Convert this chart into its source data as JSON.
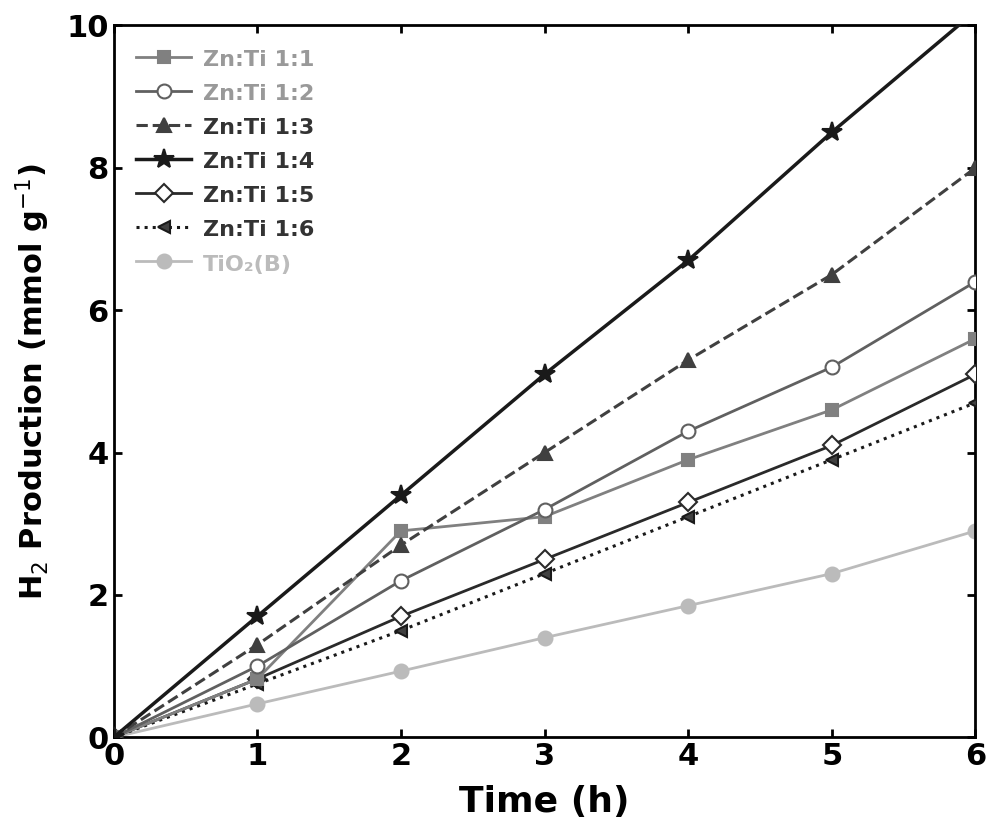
{
  "time": [
    0,
    1,
    2,
    3,
    4,
    5,
    6
  ],
  "series": [
    {
      "label": "Zn:Ti 1:1",
      "values": [
        0,
        0.82,
        2.9,
        3.1,
        3.9,
        4.6,
        5.6
      ],
      "color": "#808080",
      "linestyle": "solid",
      "marker": "s",
      "marker_facecolor": "#808080",
      "marker_size": 9,
      "linewidth": 2.0,
      "zorder": 4
    },
    {
      "label": "Zn:Ti 1:2",
      "values": [
        0,
        1.0,
        2.2,
        3.2,
        4.3,
        5.2,
        6.4
      ],
      "color": "#606060",
      "linestyle": "solid",
      "marker": "o",
      "marker_facecolor": "white",
      "marker_size": 10,
      "linewidth": 2.0,
      "zorder": 5
    },
    {
      "label": "Zn:Ti 1:3",
      "values": [
        0,
        1.3,
        2.7,
        4.0,
        5.3,
        6.5,
        8.0
      ],
      "color": "#404040",
      "linestyle": "dashed",
      "marker": "^",
      "marker_facecolor": "#404040",
      "marker_size": 10,
      "linewidth": 2.2,
      "zorder": 6
    },
    {
      "label": "Zn:Ti 1:4",
      "values": [
        0,
        1.7,
        3.4,
        5.1,
        6.7,
        8.5,
        10.2
      ],
      "color": "#1a1a1a",
      "linestyle": "solid",
      "marker": "*",
      "marker_facecolor": "#1a1a1a",
      "marker_size": 15,
      "linewidth": 2.5,
      "zorder": 7
    },
    {
      "label": "Zn:Ti 1:5",
      "values": [
        0,
        0.82,
        1.7,
        2.5,
        3.3,
        4.1,
        5.1
      ],
      "color": "#2a2a2a",
      "linestyle": "solid",
      "marker": "D",
      "marker_facecolor": "white",
      "marker_size": 9,
      "linewidth": 2.0,
      "zorder": 3
    },
    {
      "label": "Zn:Ti 1:6",
      "values": [
        0,
        0.75,
        1.5,
        2.3,
        3.1,
        3.9,
        4.7
      ],
      "color": "#1a1a1a",
      "linestyle": "dotted",
      "marker": "<",
      "marker_facecolor": "#404040",
      "marker_size": 9,
      "linewidth": 2.2,
      "zorder": 3
    },
    {
      "label": "TiO₂(B)",
      "values": [
        0,
        0.47,
        0.93,
        1.4,
        1.85,
        2.3,
        2.9
      ],
      "color": "#bbbbbb",
      "linestyle": "solid",
      "marker": "o",
      "marker_facecolor": "#bbbbbb",
      "marker_size": 10,
      "linewidth": 2.0,
      "zorder": 2
    }
  ],
  "xlabel": "Time (h)",
  "ylabel": "H₂ Production (mmol g⁻¹)",
  "xlim": [
    0,
    6
  ],
  "ylim": [
    0,
    10
  ],
  "xticks": [
    0,
    1,
    2,
    3,
    4,
    5,
    6
  ],
  "yticks": [
    0,
    2,
    4,
    6,
    8,
    10
  ],
  "legend_colors": [
    "#808080",
    "#606060",
    "#404040",
    "#1a1a1a",
    "#2a2a2a",
    "#1a1a1a",
    "#bbbbbb"
  ]
}
